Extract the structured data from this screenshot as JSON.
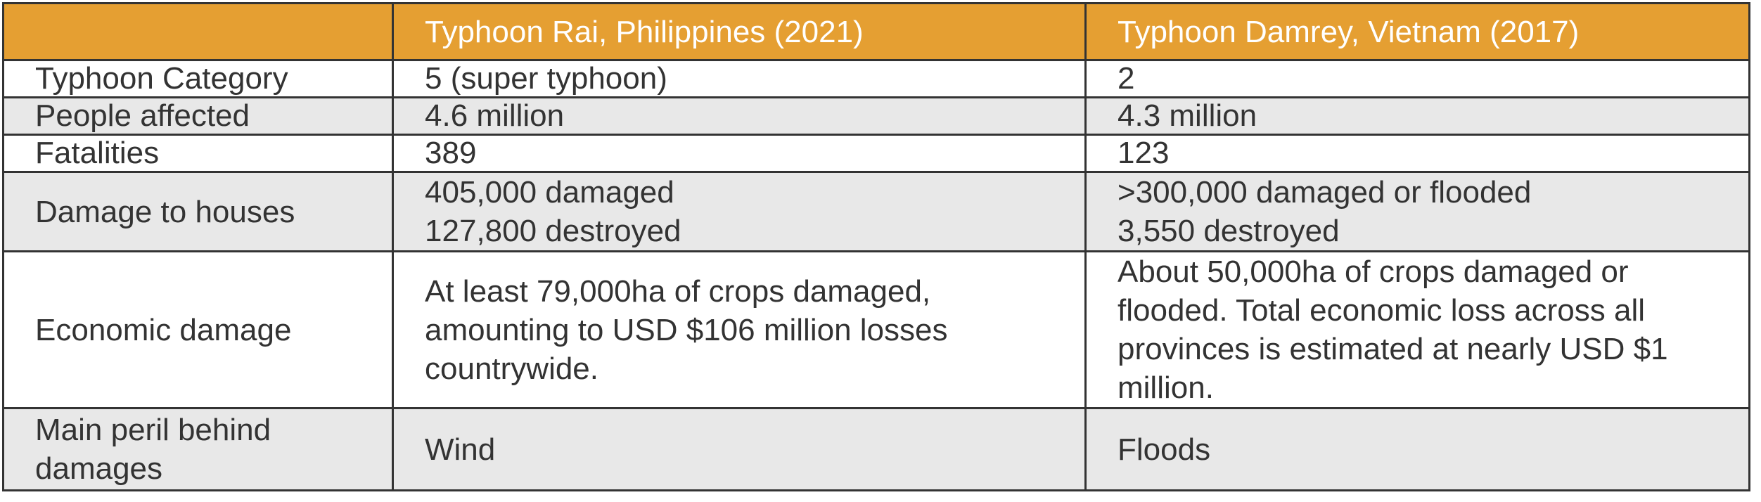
{
  "table": {
    "header": [
      "",
      "Typhoon Rai, Philippines (2021)",
      "Typhoon Damrey, Vietnam (2017)"
    ],
    "rows": [
      {
        "label": "Typhoon Category",
        "rai": [
          "5 (super typhoon)"
        ],
        "damrey": [
          "2"
        ]
      },
      {
        "label": "People affected",
        "rai": [
          "4.6 million"
        ],
        "damrey": [
          "4.3 million"
        ]
      },
      {
        "label": "Fatalities",
        "rai": [
          "389"
        ],
        "damrey": [
          "123"
        ]
      },
      {
        "label": "Damage to houses",
        "rai": [
          "405,000 damaged",
          "127,800 destroyed"
        ],
        "damrey": [
          ">300,000 damaged or flooded",
          "3,550 destroyed"
        ]
      },
      {
        "label": "Economic damage",
        "rai": [
          "At least 79,000ha of crops damaged,",
          "amounting to USD $106 million losses",
          "countrywide."
        ],
        "damrey": [
          "About 50,000ha of crops damaged or",
          "flooded. Total economic loss across all",
          "provinces is estimated at nearly USD $1",
          "million."
        ]
      },
      {
        "label_lines": [
          "Main peril behind",
          "damages"
        ],
        "rai": [
          "Wind"
        ],
        "damrey": [
          "Floods"
        ]
      }
    ]
  },
  "colors": {
    "header_bg": "#e59f32",
    "header_text": "#ffffff",
    "row_grey": "#e8e8e8",
    "row_white": "#ffffff",
    "border": "#333333"
  }
}
